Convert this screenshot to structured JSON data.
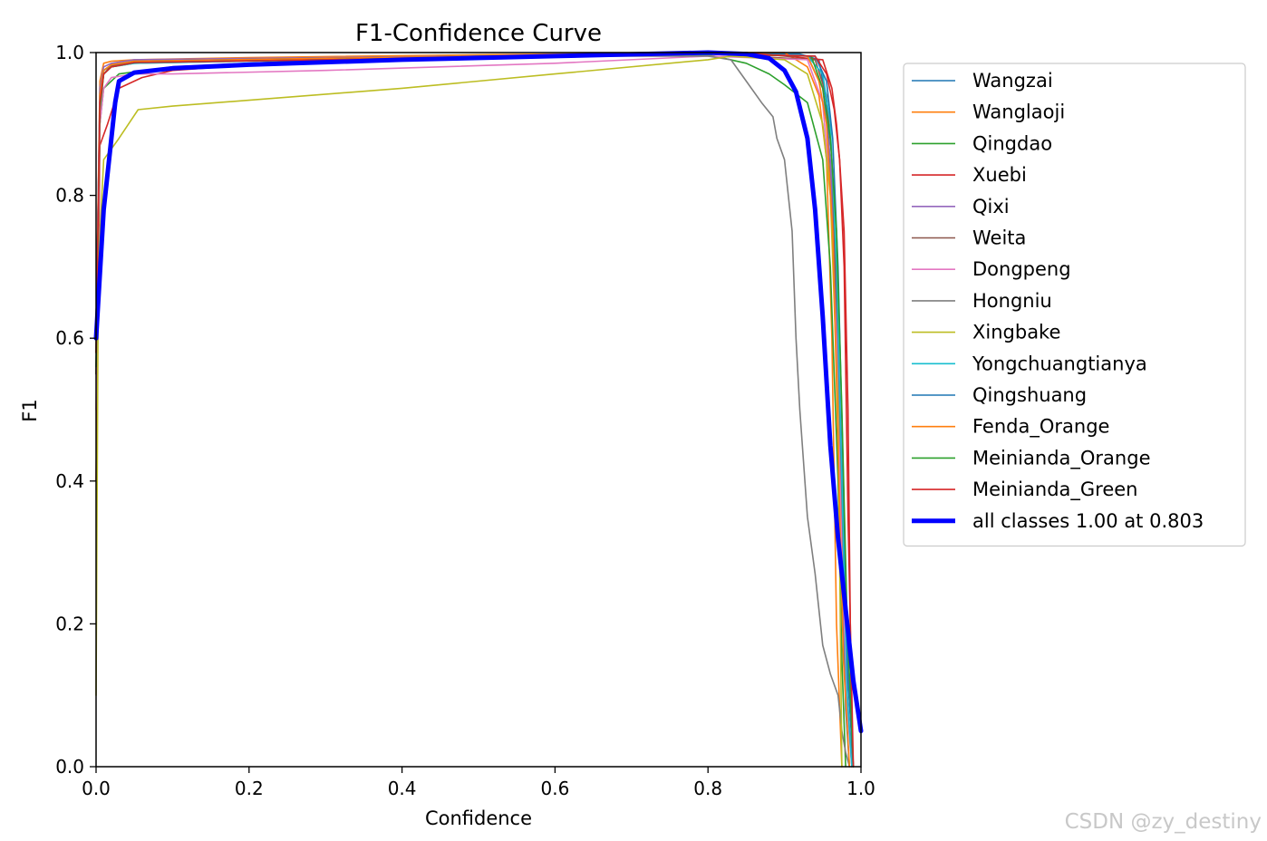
{
  "chart_data": {
    "type": "line",
    "title": "F1-Confidence Curve",
    "xlabel": "Confidence",
    "ylabel": "F1",
    "xlim": [
      0,
      1
    ],
    "ylim": [
      0,
      1
    ],
    "xticks": [
      "0.0",
      "0.2",
      "0.4",
      "0.6",
      "0.8",
      "1.0"
    ],
    "yticks": [
      "0.0",
      "0.2",
      "0.4",
      "0.6",
      "0.8",
      "1.0"
    ],
    "grid": false,
    "legend_position": "outside-right",
    "series": [
      {
        "name": "Wangzai",
        "color": "#1f77b4",
        "x": [
          0.0,
          0.005,
          0.01,
          0.02,
          0.05,
          0.2,
          0.5,
          0.8,
          0.92,
          0.945,
          0.955,
          0.962,
          0.968,
          0.975,
          0.98,
          0.985
        ],
        "y": [
          0.62,
          0.93,
          0.975,
          0.982,
          0.985,
          0.99,
          0.995,
          0.998,
          0.998,
          0.99,
          0.93,
          0.8,
          0.6,
          0.3,
          0.08,
          0.0
        ]
      },
      {
        "name": "Wanglaoji",
        "color": "#ff7f0e",
        "x": [
          0.0,
          0.005,
          0.01,
          0.02,
          0.05,
          0.2,
          0.5,
          0.8,
          0.9,
          0.93,
          0.945,
          0.955,
          0.962,
          0.968,
          0.975
        ],
        "y": [
          0.6,
          0.96,
          0.985,
          0.988,
          0.99,
          0.993,
          0.997,
          1.0,
          1.0,
          0.98,
          0.94,
          0.85,
          0.6,
          0.2,
          0.0
        ]
      },
      {
        "name": "Qingdao",
        "color": "#2ca02c",
        "x": [
          0.0,
          0.005,
          0.01,
          0.03,
          0.1,
          0.3,
          0.6,
          0.8,
          0.85,
          0.88,
          0.9,
          0.93,
          0.95,
          0.96,
          0.97,
          0.975,
          0.98
        ],
        "y": [
          0.55,
          0.9,
          0.95,
          0.97,
          0.98,
          0.99,
          0.995,
          0.997,
          0.985,
          0.97,
          0.955,
          0.93,
          0.85,
          0.7,
          0.4,
          0.15,
          0.0
        ]
      },
      {
        "name": "Xuebi",
        "color": "#d62728",
        "x": [
          0.0,
          0.005,
          0.015,
          0.03,
          0.06,
          0.1,
          0.3,
          0.6,
          0.85,
          0.95,
          0.962,
          0.968,
          0.972,
          0.978,
          0.983,
          0.988
        ],
        "y": [
          0.4,
          0.87,
          0.9,
          0.95,
          0.965,
          0.975,
          0.99,
          0.995,
          1.0,
          0.99,
          0.95,
          0.9,
          0.85,
          0.75,
          0.5,
          0.0
        ]
      },
      {
        "name": "Qixi",
        "color": "#9467bd",
        "x": [
          0.0,
          0.005,
          0.01,
          0.02,
          0.05,
          0.3,
          0.6,
          0.8,
          0.93,
          0.95,
          0.96,
          0.97,
          0.978,
          0.985,
          0.99
        ],
        "y": [
          0.6,
          0.95,
          0.98,
          0.985,
          0.99,
          0.993,
          0.996,
          0.998,
          0.995,
          0.95,
          0.85,
          0.6,
          0.3,
          0.1,
          0.0
        ]
      },
      {
        "name": "Weita",
        "color": "#8c564b",
        "x": [
          0.0,
          0.005,
          0.01,
          0.02,
          0.05,
          0.3,
          0.6,
          0.8,
          0.94,
          0.955,
          0.962,
          0.968,
          0.975,
          0.982,
          0.988
        ],
        "y": [
          0.55,
          0.92,
          0.97,
          0.982,
          0.988,
          0.992,
          0.996,
          0.998,
          0.99,
          0.94,
          0.85,
          0.65,
          0.35,
          0.1,
          0.0
        ]
      },
      {
        "name": "Dongpeng",
        "color": "#e377c2",
        "x": [
          0.0,
          0.005,
          0.01,
          0.02,
          0.05,
          0.1,
          0.3,
          0.6,
          0.8,
          0.93,
          0.95,
          0.96,
          0.968,
          0.975,
          0.982,
          0.988
        ],
        "y": [
          0.5,
          0.9,
          0.95,
          0.965,
          0.97,
          0.97,
          0.975,
          0.985,
          0.995,
          0.99,
          0.93,
          0.8,
          0.6,
          0.3,
          0.08,
          0.0
        ]
      },
      {
        "name": "Hongniu",
        "color": "#7f7f7f",
        "x": [
          0.0,
          0.005,
          0.01,
          0.02,
          0.05,
          0.3,
          0.6,
          0.8,
          0.83,
          0.85,
          0.87,
          0.885,
          0.89,
          0.9,
          0.905,
          0.91,
          0.915,
          0.92,
          0.93,
          0.94,
          0.95,
          0.96,
          0.97,
          0.975,
          0.98,
          0.985
        ],
        "y": [
          0.6,
          0.93,
          0.97,
          0.98,
          0.985,
          0.99,
          0.995,
          0.995,
          0.99,
          0.96,
          0.93,
          0.91,
          0.88,
          0.85,
          0.8,
          0.75,
          0.6,
          0.5,
          0.35,
          0.27,
          0.17,
          0.13,
          0.1,
          0.05,
          0.02,
          0.0
        ]
      },
      {
        "name": "Xingbake",
        "color": "#bcbd22",
        "x": [
          0.0,
          0.003,
          0.01,
          0.03,
          0.055,
          0.1,
          0.4,
          0.6,
          0.8,
          0.83,
          0.9,
          0.93,
          0.95,
          0.96,
          0.97,
          0.975
        ],
        "y": [
          0.1,
          0.7,
          0.85,
          0.88,
          0.92,
          0.925,
          0.95,
          0.97,
          0.99,
          0.995,
          0.99,
          0.97,
          0.9,
          0.8,
          0.5,
          0.0
        ]
      },
      {
        "name": "Yongchuangtianya",
        "color": "#17becf",
        "x": [
          0.0,
          0.005,
          0.01,
          0.02,
          0.05,
          0.3,
          0.6,
          0.8,
          0.93,
          0.95,
          0.96,
          0.968,
          0.975,
          0.982,
          0.988
        ],
        "y": [
          0.58,
          0.93,
          0.97,
          0.98,
          0.985,
          0.99,
          0.995,
          0.998,
          0.995,
          0.97,
          0.9,
          0.7,
          0.4,
          0.1,
          0.0
        ]
      },
      {
        "name": "Qingshuang",
        "color": "#1f77b4",
        "x": [
          0.0,
          0.005,
          0.01,
          0.02,
          0.05,
          0.3,
          0.6,
          0.8,
          0.94,
          0.955,
          0.963,
          0.97,
          0.977,
          0.983,
          0.99
        ],
        "y": [
          0.6,
          0.94,
          0.975,
          0.983,
          0.988,
          0.992,
          0.996,
          0.998,
          0.995,
          0.96,
          0.88,
          0.7,
          0.4,
          0.12,
          0.0
        ]
      },
      {
        "name": "Fenda_Orange",
        "color": "#ff7f0e",
        "x": [
          0.0,
          0.005,
          0.01,
          0.02,
          0.05,
          0.3,
          0.6,
          0.8,
          0.93,
          0.945,
          0.955,
          0.963,
          0.97,
          0.977,
          0.985
        ],
        "y": [
          0.58,
          0.94,
          0.975,
          0.983,
          0.988,
          0.992,
          0.996,
          0.999,
          0.995,
          0.96,
          0.9,
          0.75,
          0.45,
          0.15,
          0.0
        ]
      },
      {
        "name": "Meinianda_Orange",
        "color": "#2ca02c",
        "x": [
          0.0,
          0.005,
          0.01,
          0.02,
          0.05,
          0.3,
          0.6,
          0.8,
          0.935,
          0.95,
          0.96,
          0.968,
          0.975,
          0.982,
          0.99
        ],
        "y": [
          0.56,
          0.92,
          0.97,
          0.98,
          0.986,
          0.99,
          0.995,
          0.998,
          0.995,
          0.95,
          0.88,
          0.75,
          0.5,
          0.2,
          0.0
        ]
      },
      {
        "name": "Meinianda_Green",
        "color": "#d62728",
        "x": [
          0.0,
          0.005,
          0.01,
          0.02,
          0.05,
          0.3,
          0.6,
          0.8,
          0.94,
          0.955,
          0.965,
          0.972,
          0.978,
          0.983,
          0.99
        ],
        "y": [
          0.58,
          0.93,
          0.97,
          0.98,
          0.986,
          0.99,
          0.995,
          0.998,
          0.995,
          0.97,
          0.92,
          0.85,
          0.7,
          0.35,
          0.0
        ]
      },
      {
        "name": "all classes 1.00 at 0.803",
        "color": "#0000ff",
        "bold": true,
        "x": [
          0.0,
          0.01,
          0.02,
          0.025,
          0.03,
          0.05,
          0.1,
          0.2,
          0.4,
          0.6,
          0.8,
          0.85,
          0.88,
          0.9,
          0.915,
          0.93,
          0.94,
          0.95,
          0.96,
          0.97,
          0.98,
          0.99,
          1.0
        ],
        "y": [
          0.6,
          0.78,
          0.88,
          0.93,
          0.96,
          0.972,
          0.978,
          0.983,
          0.99,
          0.995,
          1.0,
          0.998,
          0.992,
          0.975,
          0.945,
          0.88,
          0.78,
          0.63,
          0.45,
          0.32,
          0.22,
          0.12,
          0.05
        ]
      }
    ]
  },
  "watermark": "CSDN @zy_destiny"
}
